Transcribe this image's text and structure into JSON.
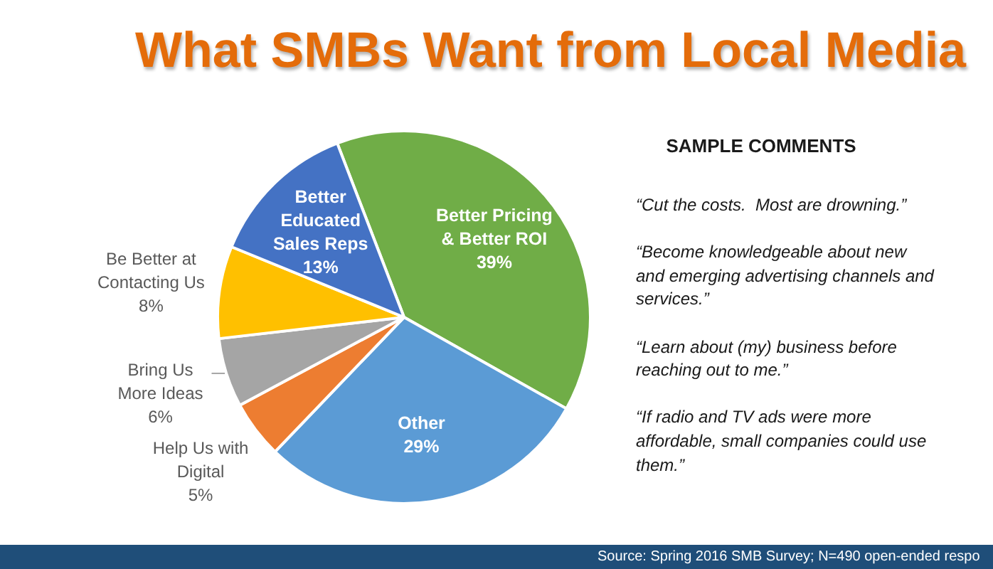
{
  "chart_data": [
    {
      "type": "pie",
      "title": "What SMBs Want from Local Media",
      "categories": [
        "Better Pricing & Better ROI",
        "Other",
        "Help Us with Digital",
        "Bring Us More Ideas",
        "Be Better at Contacting Us",
        "Better Educated Sales Reps"
      ],
      "values": [
        39,
        29,
        5,
        6,
        8,
        13
      ],
      "colors": [
        "#70ad47",
        "#5b9bd5",
        "#ed7d31",
        "#a5a5a5",
        "#ffc000",
        "#4472c4"
      ],
      "value_labels": [
        "39%",
        "29%",
        "5%",
        "6%",
        "8%",
        "13%"
      ],
      "annotations": [
        "Source: Spring 2016 SMB Survey; N=490 open-ended respo"
      ]
    },
    {
      "type": "other",
      "title": "SAMPLE COMMENTS",
      "annotations": [
        "“Cut the costs.  Most are drowning.”",
        "“Become knowledgeable about new\nand emerging advertising channels and\nservices.”",
        "“Learn about (my) business before\nreaching out to me.”",
        "“If radio and TV ads were more\naffordable, small companies could use\nthem.”"
      ]
    }
  ]
}
